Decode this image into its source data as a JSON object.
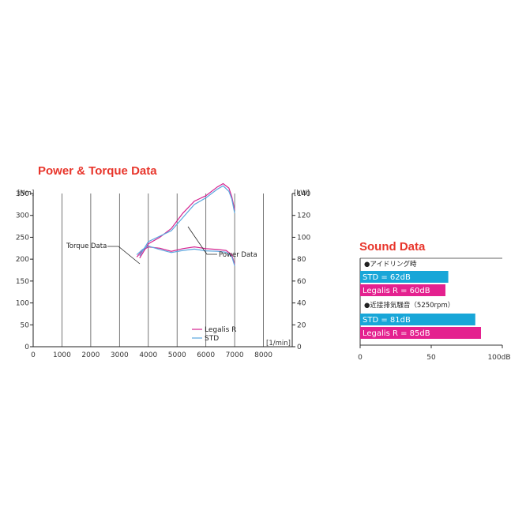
{
  "chart_data": [
    {
      "type": "line",
      "title": "Power & Torque Data",
      "x_unit": "[1/min]",
      "y_left_unit": "[Nm]",
      "y_right_unit": "[kW]",
      "xlim": [
        0,
        9000
      ],
      "ylim_left": [
        0,
        350
      ],
      "ylim_right": [
        0,
        140
      ],
      "x_ticks": [
        0,
        1000,
        2000,
        3000,
        4000,
        5000,
        6000,
        7000,
        8000
      ],
      "y_left_ticks": [
        0,
        50,
        100,
        150,
        200,
        250,
        300,
        350
      ],
      "y_right_ticks": [
        0,
        20,
        40,
        60,
        80,
        100,
        120,
        140
      ],
      "grid": "vertical",
      "legend": "bottom-right",
      "annotations": [
        {
          "label": "Torque Data",
          "points_to": "torque"
        },
        {
          "label": "Power Data",
          "points_to": "power"
        }
      ],
      "series": [
        {
          "name": "Legalis R",
          "color": "#d4228f",
          "torque_nm": [
            [
              3600,
              205
            ],
            [
              3800,
              220
            ],
            [
              4000,
              228
            ],
            [
              4400,
              225
            ],
            [
              4800,
              218
            ],
            [
              5200,
              224
            ],
            [
              5600,
              228
            ],
            [
              6000,
              224
            ],
            [
              6400,
              222
            ],
            [
              6700,
              220
            ],
            [
              6900,
              210
            ],
            [
              7000,
              188
            ]
          ],
          "power_kw": [
            [
              3700,
              81
            ],
            [
              4000,
              94
            ],
            [
              4400,
              100
            ],
            [
              4800,
              108
            ],
            [
              5200,
              122
            ],
            [
              5600,
              133
            ],
            [
              6000,
              138
            ],
            [
              6400,
              146
            ],
            [
              6600,
              149
            ],
            [
              6800,
              145
            ],
            [
              6900,
              137
            ],
            [
              7000,
              125
            ]
          ]
        },
        {
          "name": "STD",
          "color": "#5aa6df",
          "torque_nm": [
            [
              3600,
              210
            ],
            [
              3800,
              222
            ],
            [
              4000,
              230
            ],
            [
              4400,
              222
            ],
            [
              4800,
              215
            ],
            [
              5200,
              220
            ],
            [
              5600,
              223
            ],
            [
              6000,
              219
            ],
            [
              6400,
              218
            ],
            [
              6700,
              216
            ],
            [
              6900,
              206
            ],
            [
              7000,
              185
            ]
          ],
          "power_kw": [
            [
              3700,
              83
            ],
            [
              4000,
              96
            ],
            [
              4400,
              101
            ],
            [
              4800,
              106
            ],
            [
              5200,
              118
            ],
            [
              5600,
              130
            ],
            [
              6000,
              136
            ],
            [
              6400,
              144
            ],
            [
              6600,
              147
            ],
            [
              6800,
              142
            ],
            [
              6900,
              135
            ],
            [
              7000,
              122
            ]
          ]
        }
      ]
    },
    {
      "type": "bar",
      "orientation": "horizontal",
      "title": "Sound Data",
      "xlim": [
        0,
        100
      ],
      "x_ticks": [
        "0",
        "50",
        "100dB"
      ],
      "groups": [
        {
          "heading": "●アイドリング時",
          "bars": [
            {
              "label": "STD = 62dB",
              "value": 62,
              "color": "#18a6d8"
            },
            {
              "label": "Legalis R = 60dB",
              "value": 60,
              "color": "#e4218f"
            }
          ]
        },
        {
          "heading": "●近接排気騒音（5250rpm）",
          "bars": [
            {
              "label": "STD = 81dB",
              "value": 81,
              "color": "#18a6d8"
            },
            {
              "label": "Legalis R = 85dB",
              "value": 85,
              "color": "#e4218f"
            }
          ]
        }
      ]
    }
  ]
}
